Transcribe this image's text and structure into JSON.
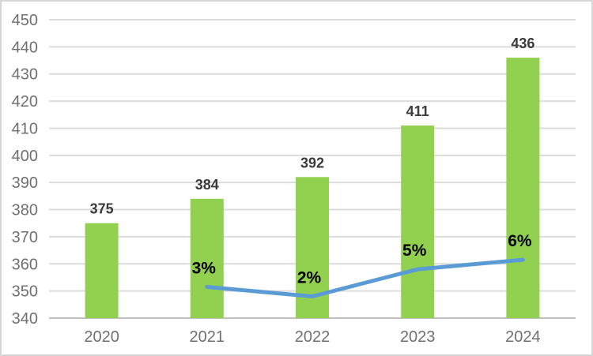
{
  "chart_data": {
    "type": "bar",
    "subtype": "combo-bar-line",
    "title": "",
    "xlabel": "",
    "ylabel": "",
    "categories": [
      "2020",
      "2021",
      "2022",
      "2023",
      "2024"
    ],
    "series": [
      {
        "name": "annual-value-bars",
        "type": "bar",
        "values": [
          375,
          384,
          392,
          411,
          436
        ],
        "data_labels": [
          "375",
          "384",
          "392",
          "411",
          "436"
        ],
        "color": "#92D050"
      },
      {
        "name": "growth-percent-line",
        "type": "line",
        "x": [
          "2021",
          "2022",
          "2023",
          "2024"
        ],
        "values_on_primary_axis": [
          351.5,
          348,
          358,
          361.5
        ],
        "data_labels": [
          "3%",
          "2%",
          "5%",
          "6%"
        ],
        "color": "#5B9BD5"
      }
    ],
    "ylim": [
      340,
      450
    ],
    "ytick_step": 10,
    "yticks": [
      450,
      440,
      430,
      420,
      410,
      400,
      390,
      380,
      370,
      360,
      350,
      340
    ],
    "grid": true,
    "legend": "none"
  },
  "colors": {
    "bar": "#92D050",
    "line": "#5B9BD5",
    "grid": "#DCDCDC",
    "axis": "#BFBFBF",
    "tick_label": "#707070",
    "bar_label": "#3B3B3B",
    "pct_label": "#000000",
    "frame": "#D6D6D6",
    "background": "#FFFFFF"
  }
}
